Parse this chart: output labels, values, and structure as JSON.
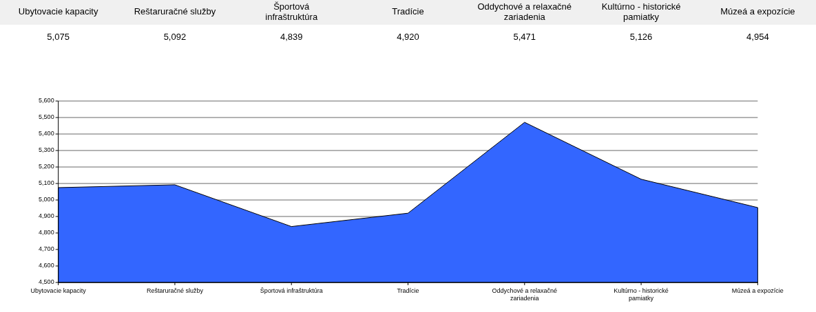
{
  "chart_data": {
    "type": "area",
    "categories": [
      "Ubytovacie kapacity",
      "Reštaruračné služby",
      "Športová infraštruktúra",
      "Tradície",
      "Oddychové a relaxačné zariadenia",
      "Kultúrno - historické pamiatky",
      "Múzeá a expozície"
    ],
    "values": [
      5075,
      5092,
      4839,
      4920,
      5471,
      5126,
      4954
    ],
    "value_labels": [
      "5,075",
      "5,092",
      "4,839",
      "4,920",
      "5,471",
      "5,126",
      "4,954"
    ],
    "color": "#3366ff",
    "ylim": [
      4500,
      5600
    ],
    "yticks": [
      {
        "value": 4500,
        "label": "4,500"
      },
      {
        "value": 4600,
        "label": "4,600"
      },
      {
        "value": 4700,
        "label": "4,700"
      },
      {
        "value": 4800,
        "label": "4,800"
      },
      {
        "value": 4900,
        "label": "4,900"
      },
      {
        "value": 5000,
        "label": "5,000"
      },
      {
        "value": 5100,
        "label": "5,100"
      },
      {
        "value": 5200,
        "label": "5,200"
      },
      {
        "value": 5300,
        "label": "5,300"
      },
      {
        "value": 5400,
        "label": "5,400"
      },
      {
        "value": 5500,
        "label": "5,500"
      },
      {
        "value": 5600,
        "label": "5,600"
      }
    ],
    "grid": "y"
  }
}
